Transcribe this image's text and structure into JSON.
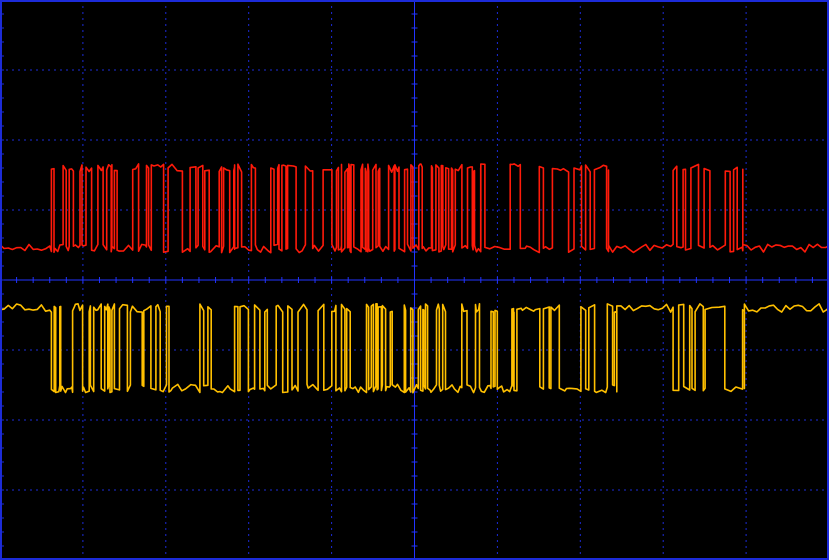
{
  "chart_data": {
    "type": "line",
    "title": "",
    "xlabel": "",
    "ylabel": "",
    "grid": true,
    "grid_divisions": {
      "x": 10,
      "y": 8
    },
    "colors": {
      "background": "#000000",
      "border": "#1c2bd8",
      "grid": "#1c2bd8",
      "center_axes": "#2233ff",
      "channel_1": "#ff1a0a",
      "channel_2": "#ffc000"
    },
    "ylim": [
      0,
      8
    ],
    "series": [
      {
        "baseline": 4.45,
        "high": 5.6,
        "low": 4.45,
        "noise": 0.12,
        "direction": 1,
        "bursts": [
          [
            0.62,
            1.35,
            "dense"
          ],
          [
            1.38,
            2.83,
            "normal"
          ],
          [
            2.87,
            4.12,
            "normal"
          ],
          [
            4.16,
            5.8,
            "dense"
          ],
          [
            5.8,
            7.34,
            "normal"
          ],
          [
            8.12,
            8.96,
            "sparse"
          ]
        ]
      },
      {
        "baseline": 3.6,
        "high": 3.6,
        "low": 2.45,
        "noise": 0.12,
        "direction": -1,
        "bursts": [
          [
            0.62,
            1.35,
            "dense"
          ],
          [
            1.38,
            2.83,
            "normal"
          ],
          [
            2.87,
            4.12,
            "normal"
          ],
          [
            4.16,
            6.2,
            "dense"
          ],
          [
            6.2,
            7.44,
            "normal"
          ],
          [
            8.12,
            8.98,
            "sparse"
          ]
        ]
      }
    ]
  }
}
